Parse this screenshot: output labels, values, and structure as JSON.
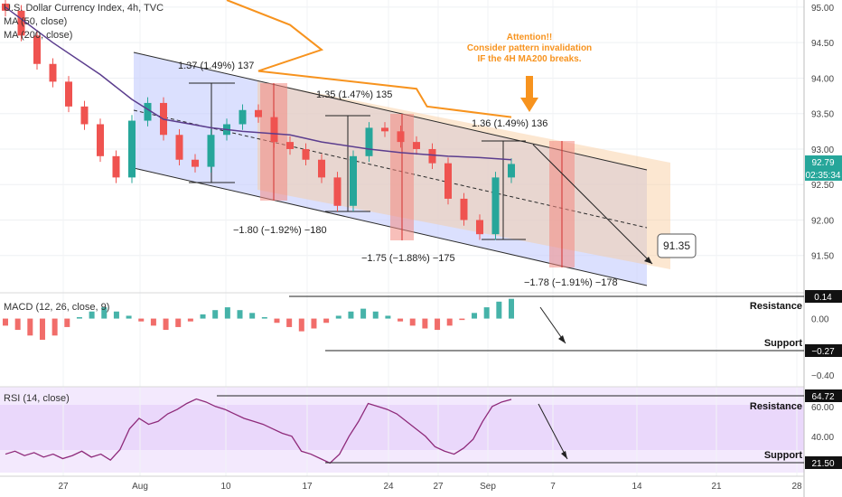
{
  "header": {
    "symbol_title": "U.S. Dollar Currency Index, 4h, TVC",
    "ma50_label": "MA (50, close)",
    "ma200_label": "MA (200, close)"
  },
  "colors": {
    "up": "#26a69a",
    "down": "#ef5350",
    "ma50": "#5b3d8e",
    "ma200": "#f7931e",
    "channel_fill": "#b9c3ff",
    "channel_fill_late": "#f6c79c",
    "measure_red": "#f28b82",
    "rsi_band": "#ead8fb",
    "attention": "#f7931e"
  },
  "chart_data": [
    {
      "type": "line",
      "panel": "price",
      "title": "U.S. Dollar Currency Index, 4h, TVC",
      "x_ticks": [
        "27",
        "Aug",
        "10",
        "17",
        "24",
        "27",
        "Sep",
        "7",
        "14",
        "21",
        "28"
      ],
      "y_ticks": [
        "95.00",
        "94.50",
        "94.00",
        "93.50",
        "93.00",
        "92.50",
        "92.00",
        "91.50"
      ],
      "ylim": [
        91.0,
        95.05
      ],
      "series": [
        {
          "name": "U.S. Dollar Currency Index",
          "style": "candles",
          "x": [
            "Jul 23",
            "Jul 24",
            "Jul 25",
            "Jul 27",
            "Jul 28",
            "Jul 29",
            "Jul 30",
            "Jul 31",
            "Aug 1",
            "Aug 3",
            "Aug 4",
            "Aug 5",
            "Aug 6",
            "Aug 7",
            "Aug 10",
            "Aug 11",
            "Aug 12",
            "Aug 13",
            "Aug 14",
            "Aug 17",
            "Aug 18",
            "Aug 19",
            "Aug 20",
            "Aug 21",
            "Aug 24",
            "Aug 25",
            "Aug 26",
            "Aug 27",
            "Aug 28",
            "Aug 31",
            "Sep 1",
            "Sep 2",
            "Sep 3"
          ],
          "values": [
            94.95,
            94.6,
            94.2,
            93.95,
            93.6,
            93.35,
            92.9,
            92.6,
            93.4,
            93.65,
            93.2,
            92.85,
            92.75,
            93.2,
            93.35,
            93.55,
            93.45,
            93.1,
            93.0,
            92.85,
            92.6,
            92.2,
            92.9,
            93.3,
            93.25,
            93.1,
            93.0,
            92.8,
            92.3,
            92.0,
            91.8,
            92.6,
            92.79
          ]
        },
        {
          "name": "MA (50, close)",
          "style": "line",
          "x": [
            "Jul 23",
            "Jul 27",
            "Jul 30",
            "Aug 1",
            "Aug 4",
            "Aug 7",
            "Aug 11",
            "Aug 14",
            "Aug 18",
            "Aug 21",
            "Aug 25",
            "Aug 28",
            "Sep 1",
            "Sep 3"
          ],
          "values": [
            95.0,
            94.5,
            94.05,
            93.7,
            93.42,
            93.3,
            93.25,
            93.2,
            93.1,
            93.0,
            92.95,
            92.9,
            92.88,
            92.85
          ]
        },
        {
          "name": "MA (200, close)",
          "style": "line",
          "x": [
            "Aug 10",
            "Aug 14",
            "Aug 18",
            "Aug 22",
            "Aug 26",
            "Aug 30",
            "Sep 3"
          ],
          "values": [
            95.1,
            94.75,
            94.4,
            94.1,
            93.85,
            93.6,
            93.45
          ]
        }
      ],
      "last_price": "92.79",
      "countdown": "02:35:34",
      "target_label": "91.35",
      "annotations": [
        {
          "text": "1.37 (1.49%) 137"
        },
        {
          "text": "1.35 (1.47%) 135"
        },
        {
          "text": "1.36 (1.49%) 136"
        },
        {
          "text": "−1.80 (−1.92%) −180"
        },
        {
          "text": "−1.75 (−1.88%) −175"
        },
        {
          "text": "−1.78 (−1.91%) −178"
        }
      ],
      "attention_note": [
        "Attention!!",
        "Consider pattern invalidation",
        "IF the 4H MA200 breaks."
      ]
    },
    {
      "type": "bar",
      "panel": "macd",
      "title": "MACD (12, 26, close, 9)",
      "y_ticks": [
        "0.00",
        "−0.20",
        "−0.40"
      ],
      "ylim": [
        -0.47,
        0.17
      ],
      "last_value": "0.14",
      "resistance_value": "0.14",
      "support_value": "−0.27",
      "resistance_label": "Resistance",
      "support_label": "Support",
      "histogram": [
        -0.05,
        -0.08,
        -0.12,
        -0.15,
        -0.12,
        -0.06,
        0.01,
        0.05,
        0.08,
        0.05,
        0.02,
        -0.02,
        -0.05,
        -0.08,
        -0.06,
        -0.02,
        0.03,
        0.06,
        0.08,
        0.06,
        0.04,
        0.01,
        -0.03,
        -0.06,
        -0.09,
        -0.07,
        -0.03,
        0.02,
        0.05,
        0.07,
        0.05,
        0.02,
        -0.02,
        -0.05,
        -0.07,
        -0.08,
        -0.05,
        -0.01,
        0.04,
        0.08,
        0.12,
        0.14
      ]
    },
    {
      "type": "line",
      "panel": "rsi",
      "title": "RSI (14, close)",
      "y_ticks": [
        "60.00",
        "40.00"
      ],
      "ylim": [
        15,
        72
      ],
      "last_value": "64.72",
      "resistance_value": "64.72",
      "support_value": "21.50",
      "resistance_label": "Resistance",
      "support_label": "Support",
      "values": [
        28,
        30,
        27,
        29,
        26,
        28,
        25,
        27,
        30,
        26,
        28,
        24,
        31,
        45,
        52,
        48,
        50,
        55,
        58,
        62,
        65,
        63,
        60,
        58,
        55,
        52,
        50,
        48,
        45,
        42,
        40,
        30,
        28,
        25,
        22,
        28,
        40,
        50,
        62,
        60,
        58,
        55,
        50,
        45,
        40,
        33,
        30,
        28,
        32,
        38,
        50,
        60,
        63,
        64.72
      ]
    }
  ]
}
